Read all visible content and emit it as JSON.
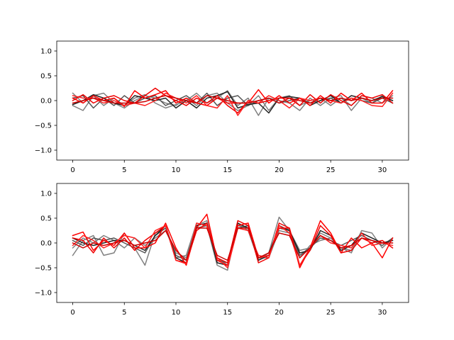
{
  "chart_data": [
    {
      "type": "line",
      "xlim": [
        -1.55,
        32.55
      ],
      "ylim": [
        -1.2,
        1.2
      ],
      "xticks": [
        0,
        5,
        10,
        15,
        20,
        25,
        30
      ],
      "yticks": [
        -1.0,
        -0.5,
        0.0,
        0.5,
        1.0
      ],
      "xtick_labels": [
        "0",
        "5",
        "10",
        "15",
        "20",
        "25",
        "30"
      ],
      "ytick_labels": [
        "−1.0",
        "−0.5",
        "0.0",
        "0.5",
        "1.0"
      ],
      "x": [
        0,
        1,
        2,
        3,
        4,
        5,
        6,
        7,
        8,
        9,
        10,
        11,
        12,
        13,
        14,
        15,
        16,
        17,
        18,
        19,
        20,
        21,
        22,
        23,
        24,
        25,
        26,
        27,
        28,
        29,
        30,
        31
      ],
      "series": [
        {
          "color": "#808080",
          "values": [
            0.15,
            -0.05,
            0.1,
            -0.1,
            0.05,
            -0.1,
            0.05,
            0.12,
            -0.05,
            -0.15,
            -0.08,
            0.0,
            0.15,
            -0.05,
            0.05,
            0.2,
            -0.1,
            0.05,
            -0.3,
            0.05,
            0.0,
            -0.05,
            -0.2,
            0.05,
            -0.1,
            0.05,
            0.1,
            -0.2,
            0.05,
            -0.05,
            0.1,
            0.0
          ]
        },
        {
          "color": "#808080",
          "values": [
            -0.1,
            -0.2,
            0.1,
            0.15,
            -0.05,
            -0.15,
            0.0,
            0.1,
            0.05,
            -0.05,
            -0.1,
            0.05,
            -0.1,
            0.1,
            0.15,
            -0.05,
            -0.2,
            -0.1,
            0.1,
            -0.2,
            0.05,
            0.1,
            -0.1,
            0.0,
            0.05,
            -0.1,
            0.05,
            -0.1,
            0.1,
            0.05,
            -0.05,
            0.1
          ]
        },
        {
          "color": "#555555",
          "values": [
            0.05,
            0.1,
            -0.15,
            0.05,
            -0.1,
            0.1,
            -0.05,
            0.05,
            0.1,
            -0.1,
            0.0,
            0.1,
            -0.05,
            0.15,
            -0.1,
            0.05,
            0.1,
            -0.1,
            0.0,
            0.05,
            -0.05,
            0.0,
            0.05,
            -0.05,
            0.0,
            0.05,
            -0.05,
            0.05,
            0.0,
            -0.05,
            0.05,
            -0.05
          ]
        },
        {
          "color": "#222222",
          "values": [
            -0.08,
            0.0,
            0.12,
            0.05,
            -0.05,
            -0.1,
            0.1,
            0.05,
            0.0,
            0.05,
            -0.15,
            0.0,
            -0.15,
            0.05,
            0.1,
            0.18,
            -0.15,
            -0.08,
            -0.05,
            -0.25,
            0.05,
            0.08,
            0.05,
            -0.1,
            0.0,
            0.1,
            -0.05,
            0.1,
            0.05,
            0.0,
            0.08,
            0.0
          ]
        },
        {
          "color": "#ff0000",
          "values": [
            0.05,
            -0.05,
            0.1,
            0.0,
            0.05,
            -0.12,
            0.2,
            0.05,
            0.12,
            0.2,
            -0.05,
            0.05,
            -0.05,
            -0.1,
            0.05,
            -0.05,
            -0.05,
            -0.05,
            0.22,
            -0.05,
            0.1,
            -0.05,
            0.05,
            -0.1,
            0.1,
            -0.05,
            0.15,
            0.0,
            0.15,
            -0.05,
            -0.05,
            0.2
          ]
        },
        {
          "color": "#ee0000",
          "values": [
            0.0,
            0.12,
            -0.05,
            0.05,
            0.1,
            0.0,
            -0.05,
            0.1,
            0.25,
            0.1,
            0.0,
            -0.1,
            0.05,
            -0.05,
            0.1,
            -0.1,
            -0.25,
            0.0,
            -0.05,
            0.0,
            0.05,
            0.05,
            -0.1,
            0.12,
            -0.05,
            0.12,
            0.0,
            -0.1,
            0.1,
            0.05,
            0.12,
            -0.05
          ]
        },
        {
          "color": "#ff2020",
          "values": [
            0.1,
            0.05,
            0.05,
            -0.05,
            0.0,
            -0.1,
            -0.05,
            -0.1,
            0.0,
            0.15,
            0.05,
            -0.05,
            0.1,
            -0.1,
            -0.15,
            0.1,
            -0.3,
            0.0,
            -0.05,
            0.1,
            0.0,
            -0.15,
            0.05,
            0.0,
            0.05,
            0.0,
            -0.05,
            0.05,
            0.0,
            -0.1,
            -0.12,
            0.15
          ]
        },
        {
          "color": "#cc0000",
          "values": [
            -0.05,
            0.0,
            0.05,
            0.0,
            -0.05,
            -0.05,
            -0.05,
            -0.02,
            0.05,
            0.1,
            0.05,
            0.0,
            -0.05,
            0.1,
            0.05,
            0.0,
            -0.05,
            -0.05,
            0.0,
            0.05,
            -0.05,
            0.05,
            0.0,
            -0.05,
            0.05,
            0.0,
            0.05,
            0.0,
            0.05,
            0.0,
            0.05,
            0.05
          ]
        }
      ]
    },
    {
      "type": "line",
      "xlim": [
        -1.55,
        32.55
      ],
      "ylim": [
        -1.2,
        1.2
      ],
      "xticks": [
        0,
        5,
        10,
        15,
        20,
        25,
        30
      ],
      "yticks": [
        -1.0,
        -0.5,
        0.0,
        0.5,
        1.0
      ],
      "xtick_labels": [
        "0",
        "5",
        "10",
        "15",
        "20",
        "25",
        "30"
      ],
      "ytick_labels": [
        "−1.0",
        "−0.5",
        "0.0",
        "0.5",
        "1.0"
      ],
      "x": [
        0,
        1,
        2,
        3,
        4,
        5,
        6,
        7,
        8,
        9,
        10,
        11,
        12,
        13,
        14,
        15,
        16,
        17,
        18,
        19,
        20,
        21,
        22,
        23,
        24,
        25,
        26,
        27,
        28,
        29,
        30,
        31
      ],
      "series": [
        {
          "color": "#808080",
          "values": [
            -0.25,
            0.05,
            0.15,
            -0.25,
            -0.2,
            0.2,
            -0.1,
            -0.45,
            0.2,
            0.3,
            -0.3,
            -0.25,
            0.4,
            0.35,
            -0.45,
            -0.55,
            0.4,
            0.25,
            -0.35,
            -0.2,
            0.52,
            0.25,
            -0.15,
            -0.1,
            0.2,
            0.1,
            -0.1,
            -0.2,
            0.25,
            0.2,
            -0.1,
            0.1
          ]
        },
        {
          "color": "#808080",
          "values": [
            -0.1,
            0.1,
            0.0,
            0.15,
            0.05,
            -0.1,
            0.1,
            -0.05,
            0.1,
            0.25,
            -0.2,
            -0.3,
            0.35,
            0.45,
            -0.3,
            -0.45,
            0.35,
            0.3,
            -0.3,
            -0.3,
            0.25,
            0.2,
            -0.3,
            -0.05,
            0.05,
            0.1,
            -0.1,
            -0.15,
            0.2,
            0.1,
            0.0,
            0.05
          ]
        },
        {
          "color": "#555555",
          "values": [
            0.05,
            -0.05,
            0.1,
            0.05,
            0.1,
            0.0,
            -0.1,
            -0.2,
            0.15,
            0.3,
            -0.25,
            -0.35,
            0.3,
            0.35,
            -0.35,
            -0.4,
            0.3,
            0.35,
            -0.3,
            -0.2,
            0.3,
            0.25,
            -0.25,
            -0.1,
            0.1,
            0.05,
            -0.05,
            0.05,
            0.15,
            0.05,
            -0.05,
            0.1
          ]
        },
        {
          "color": "#222222",
          "values": [
            0.1,
            0.0,
            -0.05,
            0.0,
            0.05,
            0.05,
            -0.05,
            -0.15,
            0.15,
            0.35,
            -0.3,
            -0.4,
            0.35,
            0.4,
            -0.4,
            -0.45,
            0.4,
            0.3,
            -0.35,
            -0.25,
            0.35,
            0.25,
            -0.2,
            -0.15,
            0.25,
            0.15,
            -0.15,
            -0.05,
            0.2,
            0.1,
            0.0,
            0.05
          ]
        },
        {
          "color": "#ff0000",
          "values": [
            0.15,
            0.22,
            -0.15,
            0.05,
            -0.05,
            0.2,
            -0.1,
            -0.1,
            0.0,
            0.4,
            -0.1,
            -0.45,
            0.3,
            0.58,
            -0.35,
            -0.45,
            0.35,
            0.4,
            -0.3,
            -0.25,
            0.3,
            0.3,
            -0.5,
            -0.1,
            0.45,
            0.2,
            -0.2,
            0.1,
            -0.1,
            0.0,
            -0.3,
            0.1
          ]
        },
        {
          "color": "#ee0000",
          "values": [
            0.1,
            0.05,
            -0.2,
            0.1,
            -0.1,
            0.1,
            -0.15,
            0.05,
            0.2,
            0.35,
            -0.35,
            -0.4,
            0.25,
            0.4,
            -0.3,
            -0.4,
            0.45,
            0.35,
            -0.4,
            -0.3,
            0.4,
            0.3,
            -0.45,
            -0.15,
            0.35,
            0.15,
            -0.2,
            -0.15,
            0.1,
            0.0,
            0.05,
            -0.1
          ]
        },
        {
          "color": "#ff2020",
          "values": [
            -0.05,
            0.15,
            0.05,
            -0.1,
            0.0,
            0.15,
            0.1,
            -0.1,
            0.25,
            0.35,
            -0.35,
            -0.42,
            0.4,
            0.35,
            -0.3,
            -0.5,
            0.3,
            0.25,
            -0.25,
            -0.3,
            0.35,
            0.2,
            -0.45,
            -0.1,
            0.15,
            0.0,
            -0.05,
            -0.1,
            0.2,
            -0.05,
            0.0,
            -0.05
          ]
        },
        {
          "color": "#cc0000",
          "values": [
            0.0,
            -0.1,
            0.0,
            -0.05,
            0.0,
            0.05,
            -0.05,
            0.0,
            0.05,
            0.25,
            -0.15,
            -0.35,
            0.3,
            0.3,
            -0.25,
            -0.35,
            0.3,
            0.3,
            -0.3,
            -0.2,
            0.2,
            0.15,
            -0.3,
            -0.1,
            0.15,
            0.05,
            -0.1,
            -0.05,
            0.1,
            0.05,
            0.0,
            0.0
          ]
        }
      ]
    }
  ]
}
